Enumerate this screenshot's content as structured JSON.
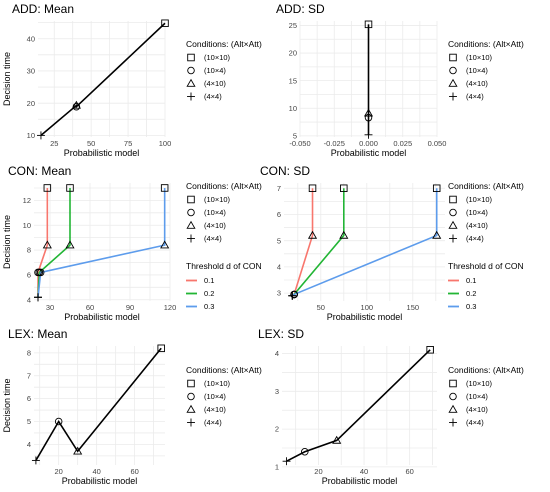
{
  "xlabel": "Probabilistic model",
  "ylabel": "Decision time",
  "legend_conditions_title": "Conditions: (Alt×Att)",
  "conditions": [
    {
      "label": "(10×10)",
      "shape": "square"
    },
    {
      "label": "(10×4)",
      "shape": "circle"
    },
    {
      "label": "(4×10)",
      "shape": "triangle"
    },
    {
      "label": "(4×4)",
      "shape": "plus"
    }
  ],
  "legend_threshold_title": "Threshold d of CON",
  "thresholds": [
    {
      "label": "0.1",
      "color": "#f8766d"
    },
    {
      "label": "0.2",
      "color": "#22b535"
    },
    {
      "label": "0.3",
      "color": "#5d9cec"
    }
  ],
  "chart_data": [
    {
      "type": "line",
      "title": "ADD: Mean",
      "xlim": [
        14,
        100
      ],
      "ylim": [
        9.5,
        45.5
      ],
      "xticks": [
        25,
        50,
        75,
        100
      ],
      "yticks": [
        10,
        20,
        30,
        40
      ],
      "series": [
        {
          "color": "#000000",
          "points": [
            {
              "cond": "(4×4)",
              "x": 16,
              "y": 10
            },
            {
              "cond": "(4×10)",
              "x": 40,
              "y": 19.3
            },
            {
              "cond": "(10×4)",
              "x": 40,
              "y": 18.9
            },
            {
              "cond": "(10×10)",
              "x": 100,
              "y": 44.8
            }
          ]
        }
      ]
    },
    {
      "type": "line",
      "title": "ADD: SD",
      "xlim": [
        -0.05,
        0.05
      ],
      "ylim": [
        4.8,
        25.8
      ],
      "xticks": [
        -0.05,
        -0.025,
        0,
        0.025,
        0.05
      ],
      "yticks": [
        5,
        10,
        15,
        20,
        25
      ],
      "series": [
        {
          "color": "#000000",
          "points": [
            {
              "cond": "(4×4)",
              "x": 0,
              "y": 5.2
            },
            {
              "cond": "(10×4)",
              "x": 0,
              "y": 8.3
            },
            {
              "cond": "(4×10)",
              "x": 0,
              "y": 9.1
            },
            {
              "cond": "(10×10)",
              "x": 0,
              "y": 25.2
            }
          ]
        }
      ]
    },
    {
      "type": "line",
      "title": "CON: Mean",
      "xlim": [
        18,
        120
      ],
      "ylim": [
        3.9,
        13.4
      ],
      "xticks": [
        30,
        60,
        90,
        120
      ],
      "yticks": [
        4,
        6,
        8,
        10,
        12
      ],
      "series": [
        {
          "name": "0.1",
          "color": "#f8766d",
          "points": [
            {
              "cond": "(4×4)",
              "x": 21,
              "y": 4.2
            },
            {
              "cond": "(10×4)",
              "x": 21,
              "y": 6.2
            },
            {
              "cond": "(4×10)",
              "x": 28,
              "y": 8.4
            },
            {
              "cond": "(10×10)",
              "x": 28,
              "y": 13.0
            }
          ]
        },
        {
          "name": "0.2",
          "color": "#22b535",
          "points": [
            {
              "cond": "(4×4)",
              "x": 21,
              "y": 4.2
            },
            {
              "cond": "(10×4)",
              "x": 22,
              "y": 6.2
            },
            {
              "cond": "(4×10)",
              "x": 45,
              "y": 8.4
            },
            {
              "cond": "(10×10)",
              "x": 45,
              "y": 13.0
            }
          ]
        },
        {
          "name": "0.3",
          "color": "#5d9cec",
          "points": [
            {
              "cond": "(4×4)",
              "x": 21,
              "y": 4.2
            },
            {
              "cond": "(10×4)",
              "x": 23,
              "y": 6.2
            },
            {
              "cond": "(4×10)",
              "x": 116,
              "y": 8.4
            },
            {
              "cond": "(10×10)",
              "x": 116,
              "y": 13.0
            }
          ]
        }
      ]
    },
    {
      "type": "line",
      "title": "CON: SD",
      "xlim": [
        10,
        185
      ],
      "ylim": [
        2.7,
        7.2
      ],
      "xticks": [
        50,
        100,
        150
      ],
      "yticks": [
        3,
        4,
        5,
        6,
        7
      ],
      "series": [
        {
          "name": "0.1",
          "color": "#f8766d",
          "points": [
            {
              "cond": "(4×4)",
              "x": 19,
              "y": 2.9
            },
            {
              "cond": "(10×4)",
              "x": 21,
              "y": 2.95
            },
            {
              "cond": "(4×10)",
              "x": 41,
              "y": 5.2
            },
            {
              "cond": "(10×10)",
              "x": 41,
              "y": 7.0
            }
          ]
        },
        {
          "name": "0.2",
          "color": "#22b535",
          "points": [
            {
              "cond": "(4×4)",
              "x": 19,
              "y": 2.9
            },
            {
              "cond": "(10×4)",
              "x": 21,
              "y": 2.95
            },
            {
              "cond": "(4×10)",
              "x": 75,
              "y": 5.2
            },
            {
              "cond": "(10×10)",
              "x": 75,
              "y": 7.0
            }
          ]
        },
        {
          "name": "0.3",
          "color": "#5d9cec",
          "points": [
            {
              "cond": "(4×4)",
              "x": 19,
              "y": 2.9
            },
            {
              "cond": "(10×4)",
              "x": 21,
              "y": 2.95
            },
            {
              "cond": "(4×10)",
              "x": 176,
              "y": 5.2
            },
            {
              "cond": "(10×10)",
              "x": 176,
              "y": 7.0
            }
          ]
        }
      ]
    },
    {
      "type": "line",
      "title": "LEX: Mean",
      "xlim": [
        7,
        76
      ],
      "ylim": [
        3.1,
        8.3
      ],
      "xticks": [
        20,
        40,
        60
      ],
      "yticks": [
        4,
        5,
        6,
        7,
        8
      ],
      "series": [
        {
          "color": "#000000",
          "points": [
            {
              "cond": "(4×4)",
              "x": 8,
              "y": 3.3
            },
            {
              "cond": "(10×4)",
              "x": 20,
              "y": 5.0
            },
            {
              "cond": "(4×10)",
              "x": 30,
              "y": 3.7
            },
            {
              "cond": "(10×10)",
              "x": 74,
              "y": 8.2
            }
          ]
        }
      ]
    },
    {
      "type": "line",
      "title": "LEX: SD",
      "xlim": [
        4,
        72
      ],
      "ylim": [
        1.05,
        4.2
      ],
      "xticks": [
        20,
        40,
        60
      ],
      "yticks": [
        1,
        2,
        3,
        4
      ],
      "series": [
        {
          "color": "#000000",
          "points": [
            {
              "cond": "(4×4)",
              "x": 6,
              "y": 1.15
            },
            {
              "cond": "(10×4)",
              "x": 14,
              "y": 1.4
            },
            {
              "cond": "(4×10)",
              "x": 28,
              "y": 1.7
            },
            {
              "cond": "(10×10)",
              "x": 69,
              "y": 4.1
            }
          ]
        }
      ]
    }
  ]
}
